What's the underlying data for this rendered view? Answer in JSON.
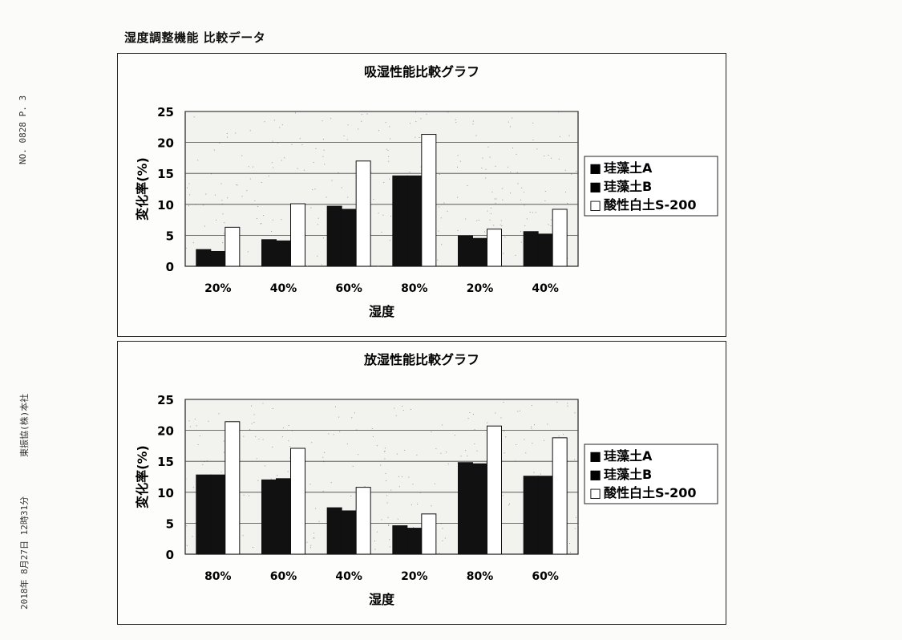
{
  "document": {
    "title": "湿度調整機能 比較データ",
    "margin_top": "NO. 0828    P. 3",
    "margin_mid": "東振協(株)本社",
    "margin_bottom": "2018年 8月27日 12時31分"
  },
  "colors": {
    "bar_dark": "#111111",
    "bar_light": "#ffffff",
    "grid": "#444444",
    "plot_bg": "#f2f2ef"
  },
  "chart_data": [
    {
      "type": "bar",
      "title": "吸湿性能比較グラフ",
      "xlabel": "湿度",
      "ylabel": "変化率(%)",
      "ylim": [
        0,
        25
      ],
      "yticks": [
        0,
        5,
        10,
        15,
        20,
        25
      ],
      "grid": true,
      "legend_position": "right",
      "categories": [
        "20%",
        "40%",
        "60%",
        "80%",
        "20%",
        "40%"
      ],
      "series": [
        {
          "name": "珪藻土A",
          "marker": "■",
          "values": [
            2.7,
            4.3,
            9.7,
            14.6,
            4.9,
            5.6
          ]
        },
        {
          "name": "珪藻土B",
          "marker": "■",
          "values": [
            2.4,
            4.1,
            9.2,
            14.6,
            4.5,
            5.2
          ]
        },
        {
          "name": "酸性白土S-200",
          "marker": "□",
          "values": [
            6.3,
            10.1,
            17.0,
            21.3,
            6.0,
            9.2
          ]
        }
      ]
    },
    {
      "type": "bar",
      "title": "放湿性能比較グラフ",
      "xlabel": "湿度",
      "ylabel": "変化率(%)",
      "ylim": [
        0,
        25
      ],
      "yticks": [
        0,
        5,
        10,
        15,
        20,
        25
      ],
      "grid": true,
      "legend_position": "right",
      "categories": [
        "80%",
        "60%",
        "40%",
        "20%",
        "80%",
        "60%"
      ],
      "series": [
        {
          "name": "珪藻土A",
          "marker": "■",
          "values": [
            12.8,
            12.0,
            7.5,
            4.6,
            14.8,
            12.6
          ]
        },
        {
          "name": "珪藻土B",
          "marker": "■",
          "values": [
            12.8,
            12.2,
            7.0,
            4.2,
            14.6,
            12.6
          ]
        },
        {
          "name": "酸性白土S-200",
          "marker": "□",
          "values": [
            21.4,
            17.1,
            10.8,
            6.5,
            20.7,
            18.8
          ]
        }
      ]
    }
  ]
}
